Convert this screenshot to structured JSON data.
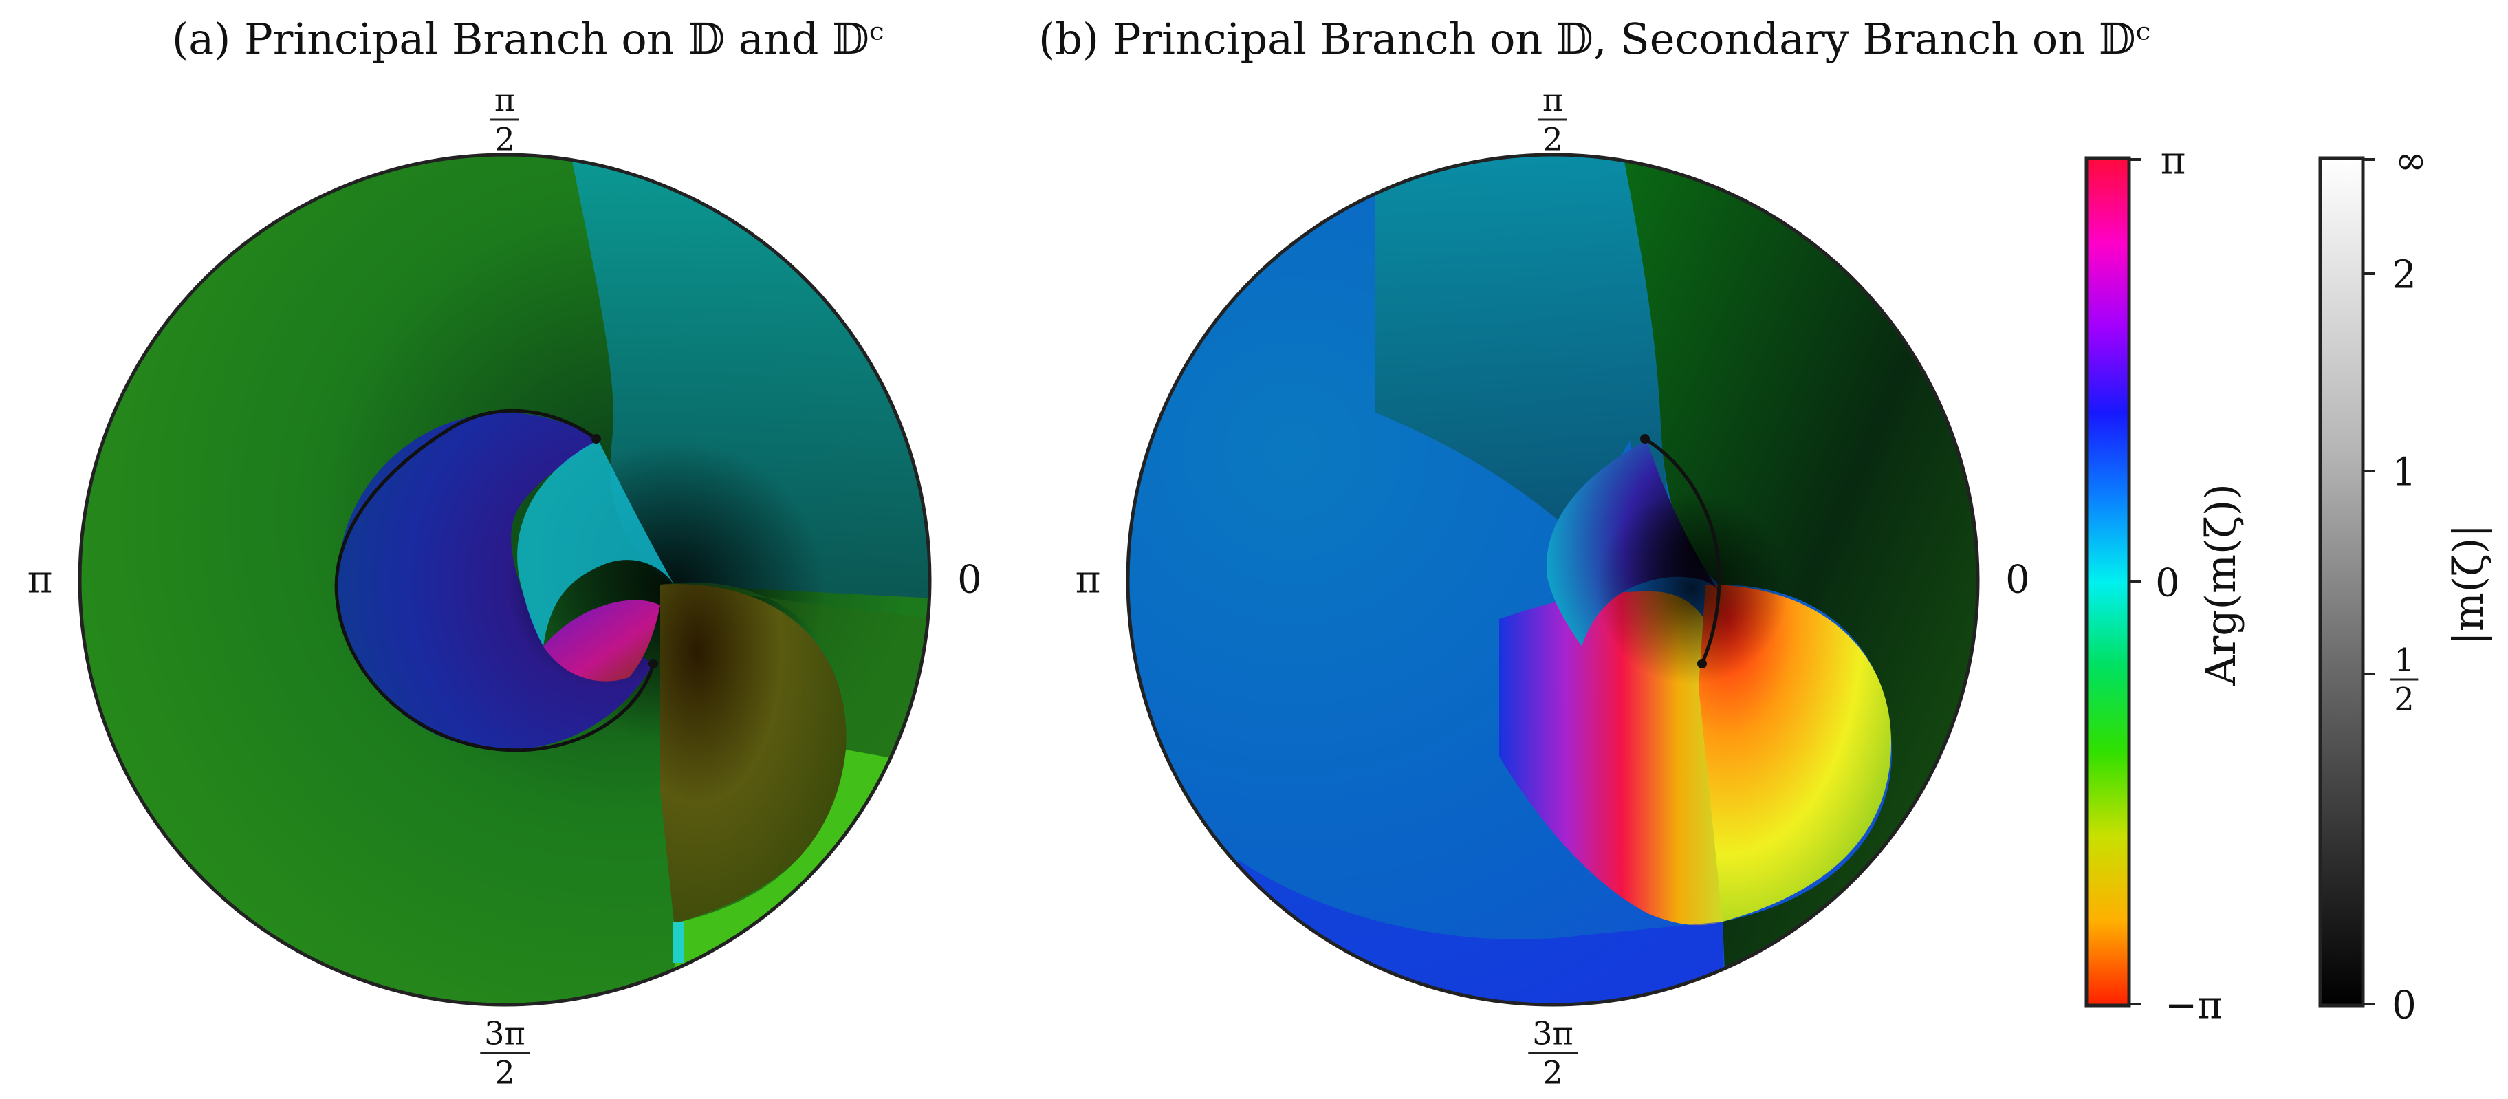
{
  "panels": [
    {
      "title": "(a) Principal Branch on 𝔻 and 𝔻ᶜ",
      "angle_labels": {
        "zero": "0",
        "half_pi_num": "π",
        "half_pi_den": "2",
        "pi": "π",
        "three_half_pi_num": "3π",
        "three_half_pi_den": "2"
      }
    },
    {
      "title": "(b) Principal Branch on 𝔻, Secondary Branch on 𝔻ᶜ",
      "angle_labels": {
        "zero": "0",
        "half_pi_num": "π",
        "half_pi_den": "2",
        "pi": "π",
        "three_half_pi_num": "3π",
        "three_half_pi_den": "2"
      }
    }
  ],
  "colorbars": {
    "arg": {
      "label": "Arg(m(ζ))",
      "ticks": [
        "π",
        "0",
        "−π"
      ]
    },
    "mod": {
      "label": "|m(ζ)|",
      "ticks": [
        "∞",
        "2",
        "1",
        "0"
      ],
      "half_num": "1",
      "half_den": "2"
    }
  }
}
